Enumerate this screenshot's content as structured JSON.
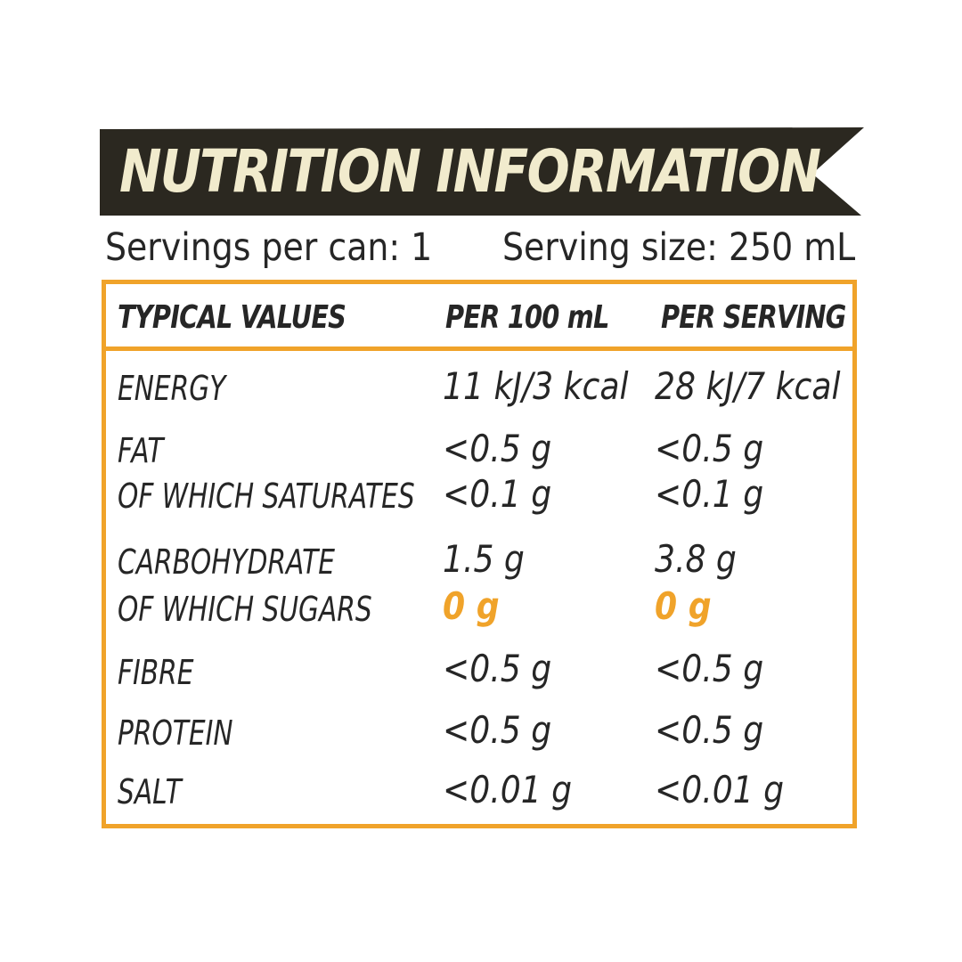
{
  "banner": {
    "title": "NUTRITION INFORMATION",
    "background": "#2b2820",
    "text_color": "#f1ebcd"
  },
  "servings": {
    "per_can": "Servings per can: 1",
    "size": "Serving size: 250 mL"
  },
  "table": {
    "border_color": "#f0a32a",
    "headers": [
      "TYPICAL VALUES",
      "PER 100 mL",
      "PER SERVING"
    ],
    "rows": [
      {
        "label": "ENERGY",
        "per_100ml": "11 kJ/3 kcal",
        "per_serving": "28 kJ/7 kcal"
      },
      {
        "label": "FAT",
        "per_100ml": "<0.5 g",
        "per_serving": "<0.5 g"
      },
      {
        "label": "OF WHICH SATURATES",
        "per_100ml": "<0.1 g",
        "per_serving": "<0.1 g"
      },
      {
        "label": "CARBOHYDRATE",
        "per_100ml": "1.5 g",
        "per_serving": "3.8 g"
      },
      {
        "label": "OF WHICH SUGARS",
        "per_100ml": "0 g",
        "per_serving": "0 g",
        "highlight_color": "#f0a32a"
      },
      {
        "label": "FIBRE",
        "per_100ml": "<0.5 g",
        "per_serving": "<0.5 g"
      },
      {
        "label": "PROTEIN",
        "per_100ml": "<0.5 g",
        "per_serving": "<0.5 g"
      },
      {
        "label": "SALT",
        "per_100ml": "<0.01 g",
        "per_serving": "<0.01 g"
      }
    ]
  }
}
